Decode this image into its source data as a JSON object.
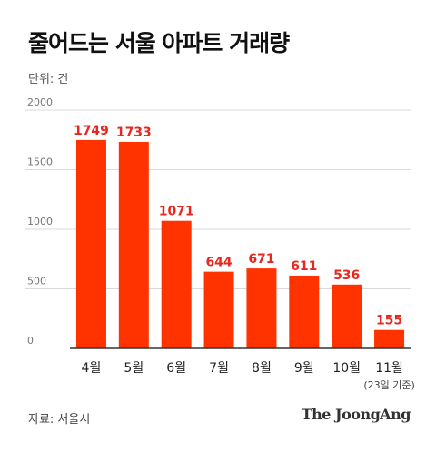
{
  "header": {
    "title": "줄어드는 서울 아파트 거래량",
    "unit": "단위: 건"
  },
  "footer": {
    "source": "자료: 서울시",
    "brand": "The JoongAng"
  },
  "colors": {
    "bar": "#FF3300",
    "value_label": "#E8281E",
    "grid": "#D9D9D9",
    "axis": "#333333",
    "tick": "#777777"
  },
  "chart_data": {
    "type": "bar",
    "categories": [
      "4월",
      "5월",
      "6월",
      "7월",
      "8월",
      "9월",
      "10월",
      "11월"
    ],
    "values": [
      1749,
      1733,
      1071,
      644,
      671,
      611,
      536,
      155
    ],
    "value_labels": [
      "1749",
      "1733",
      "1071",
      "644",
      "671",
      "611",
      "536",
      "155"
    ],
    "yticks": [
      0,
      500,
      1000,
      1500,
      2000
    ],
    "ytick_labels": [
      "0",
      "500",
      "1000",
      "1500",
      "2000"
    ],
    "ylim": [
      0,
      2000
    ],
    "annotations": [
      {
        "category": "11월",
        "text": "(23일 기준)"
      }
    ],
    "grid": true,
    "title": "줄어드는 서울 아파트 거래량"
  }
}
